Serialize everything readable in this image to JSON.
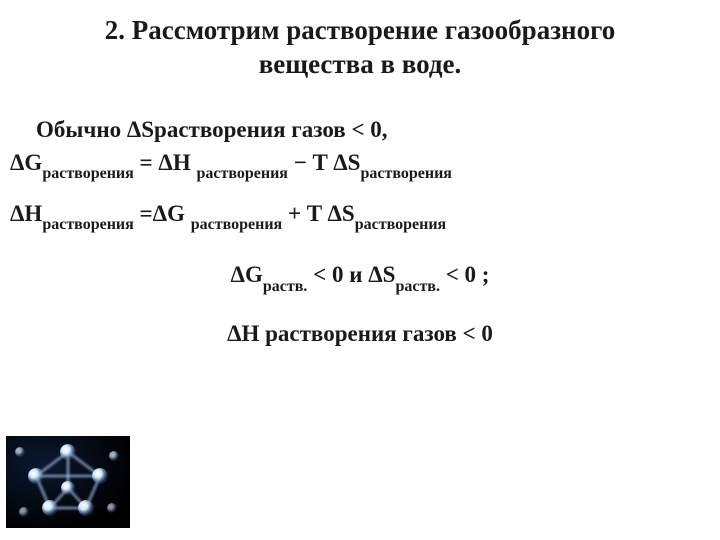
{
  "heading": "2. Рассмотрим растворение газообразного  вещества в воде.",
  "lines": {
    "l1": "Обычно ΔSрастворения газов < 0,",
    "l2": "ΔG|растворения| = ΔH |растворения| − T ΔS|растворения|",
    "l3": "ΔH|растворения| =ΔG |растворения| + T ΔS|растворения|",
    "l4": "ΔG|раств.| < 0  и  ΔS|раств.| < 0 ;",
    "l5": "ΔH растворения газов < 0"
  },
  "colors": {
    "text": "#1a1a1a",
    "bg": "#ffffff",
    "molecule_bg": "#000000",
    "molecule_glow": "#ffffff"
  }
}
